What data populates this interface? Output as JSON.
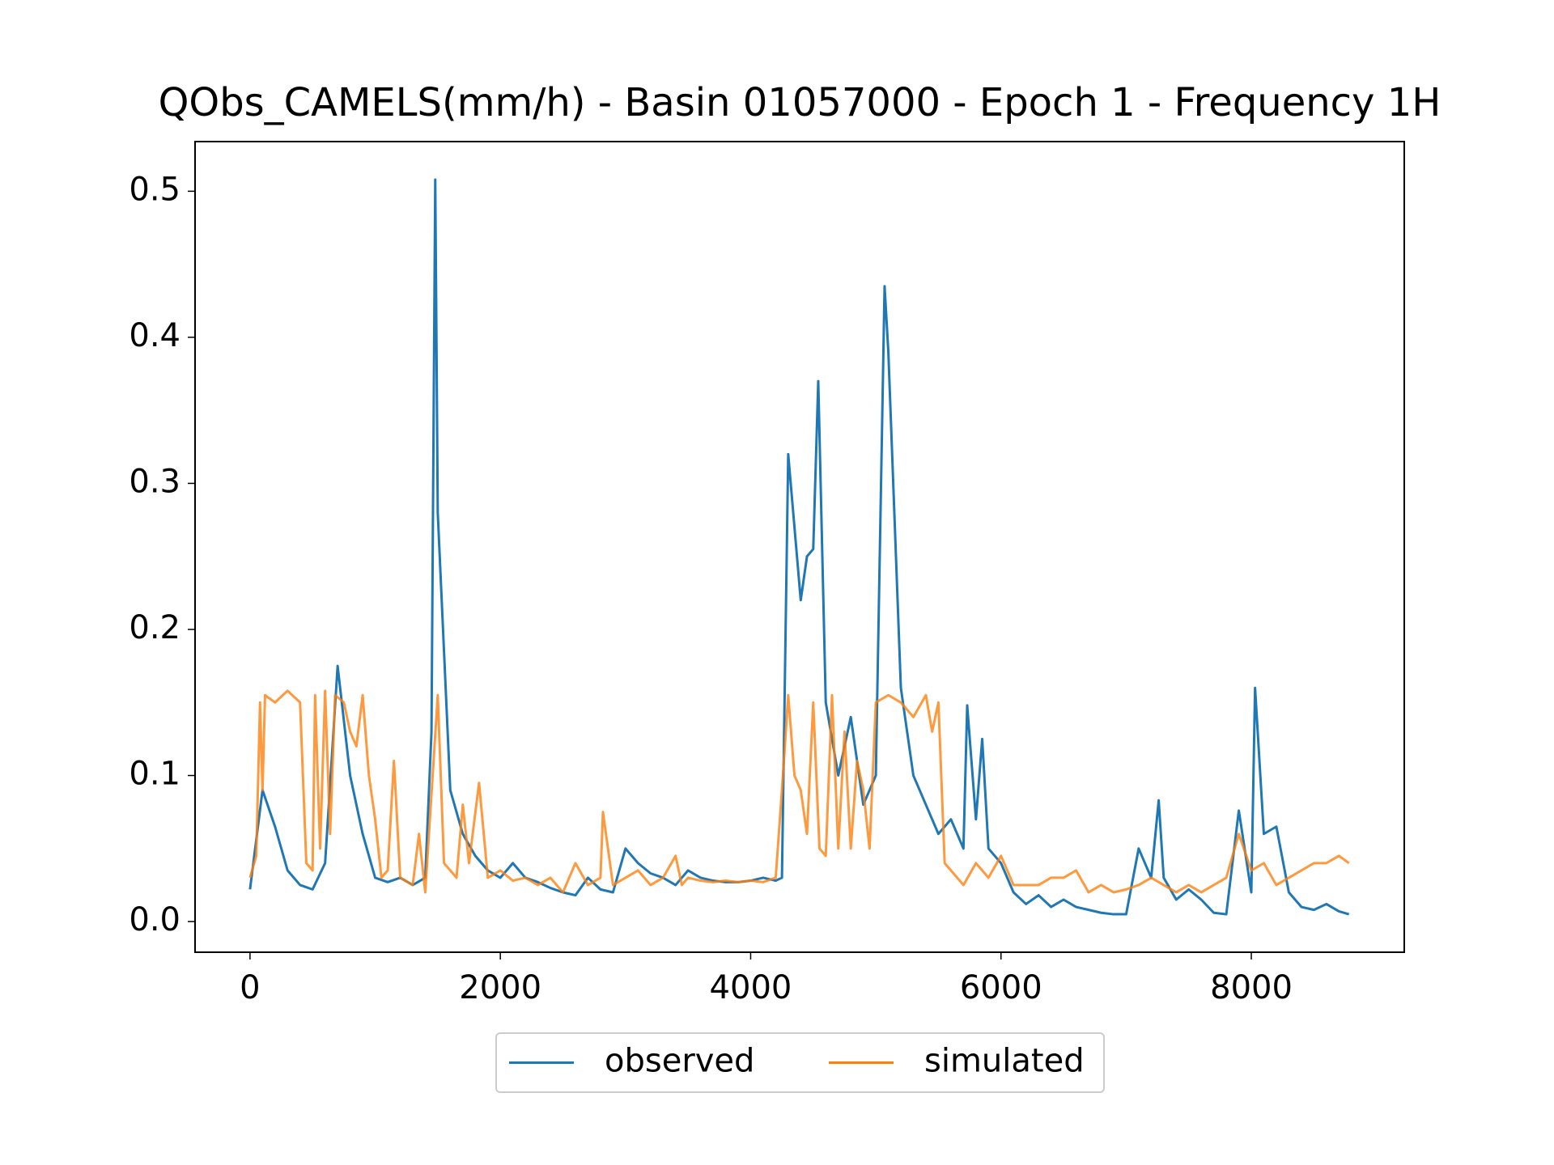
{
  "chart_data": {
    "type": "line",
    "title": "QObs_CAMELS(mm/h) - Basin 01057000 - Epoch 1 - Frequency 1H",
    "xlim": [
      -439,
      9222
    ],
    "xticks": [
      0,
      2000,
      4000,
      6000,
      8000
    ],
    "ylim": [
      -0.021,
      0.534
    ],
    "yticks": [
      0.0,
      0.1,
      0.2,
      0.3,
      0.4,
      0.5
    ],
    "legend": "below",
    "series": [
      {
        "name": "observed",
        "color": "#1f77b4",
        "x": [
          0,
          100,
          200,
          300,
          400,
          500,
          600,
          700,
          800,
          900,
          1000,
          1100,
          1200,
          1300,
          1400,
          1450,
          1480,
          1500,
          1600,
          1700,
          1800,
          1900,
          2000,
          2100,
          2200,
          2300,
          2400,
          2500,
          2600,
          2700,
          2800,
          2900,
          3000,
          3100,
          3200,
          3300,
          3400,
          3500,
          3600,
          3700,
          3800,
          3900,
          4000,
          4100,
          4200,
          4250,
          4300,
          4400,
          4450,
          4500,
          4540,
          4600,
          4700,
          4800,
          4900,
          5000,
          5070,
          5100,
          5200,
          5300,
          5400,
          5500,
          5600,
          5700,
          5730,
          5800,
          5850,
          5900,
          6000,
          6100,
          6200,
          6300,
          6400,
          6500,
          6600,
          6700,
          6800,
          6900,
          7000,
          7100,
          7200,
          7260,
          7300,
          7400,
          7500,
          7600,
          7700,
          7800,
          7900,
          8000,
          8030,
          8100,
          8200,
          8300,
          8400,
          8500,
          8600,
          8700,
          8780
        ],
        "values": [
          0.022,
          0.09,
          0.065,
          0.035,
          0.025,
          0.022,
          0.04,
          0.175,
          0.1,
          0.06,
          0.03,
          0.027,
          0.03,
          0.025,
          0.03,
          0.13,
          0.508,
          0.28,
          0.09,
          0.06,
          0.045,
          0.035,
          0.03,
          0.04,
          0.03,
          0.027,
          0.023,
          0.02,
          0.018,
          0.03,
          0.022,
          0.02,
          0.05,
          0.04,
          0.033,
          0.03,
          0.025,
          0.035,
          0.03,
          0.028,
          0.027,
          0.027,
          0.028,
          0.03,
          0.028,
          0.03,
          0.32,
          0.22,
          0.25,
          0.255,
          0.37,
          0.15,
          0.1,
          0.14,
          0.08,
          0.1,
          0.435,
          0.39,
          0.16,
          0.1,
          0.08,
          0.06,
          0.07,
          0.05,
          0.148,
          0.07,
          0.125,
          0.05,
          0.04,
          0.02,
          0.012,
          0.018,
          0.01,
          0.015,
          0.01,
          0.008,
          0.006,
          0.005,
          0.005,
          0.05,
          0.03,
          0.083,
          0.03,
          0.015,
          0.022,
          0.015,
          0.006,
          0.005,
          0.076,
          0.02,
          0.16,
          0.06,
          0.065,
          0.02,
          0.01,
          0.008,
          0.012,
          0.007,
          0.005
        ]
      },
      {
        "name": "simulated",
        "color": "#ff7f0e",
        "x": [
          0,
          50,
          80,
          100,
          120,
          200,
          300,
          400,
          450,
          500,
          520,
          560,
          600,
          640,
          680,
          750,
          800,
          850,
          900,
          950,
          1000,
          1050,
          1100,
          1150,
          1200,
          1300,
          1350,
          1400,
          1500,
          1550,
          1650,
          1700,
          1750,
          1830,
          1900,
          2000,
          2100,
          2200,
          2300,
          2400,
          2500,
          2600,
          2700,
          2800,
          2820,
          2900,
          3000,
          3100,
          3200,
          3300,
          3400,
          3450,
          3500,
          3600,
          3700,
          3800,
          3900,
          4000,
          4100,
          4200,
          4250,
          4300,
          4350,
          4400,
          4450,
          4500,
          4550,
          4600,
          4650,
          4700,
          4750,
          4800,
          4850,
          4900,
          4950,
          5000,
          5100,
          5200,
          5300,
          5400,
          5450,
          5500,
          5550,
          5600,
          5700,
          5800,
          5900,
          6000,
          6100,
          6200,
          6300,
          6400,
          6500,
          6600,
          6700,
          6800,
          6900,
          7000,
          7100,
          7200,
          7300,
          7400,
          7500,
          7600,
          7700,
          7800,
          7900,
          8000,
          8100,
          8200,
          8300,
          8400,
          8500,
          8600,
          8700,
          8780
        ],
        "values": [
          0.03,
          0.045,
          0.15,
          0.09,
          0.155,
          0.15,
          0.158,
          0.15,
          0.04,
          0.035,
          0.155,
          0.05,
          0.158,
          0.06,
          0.155,
          0.15,
          0.13,
          0.12,
          0.155,
          0.1,
          0.07,
          0.03,
          0.035,
          0.11,
          0.03,
          0.025,
          0.06,
          0.02,
          0.155,
          0.04,
          0.03,
          0.08,
          0.04,
          0.095,
          0.03,
          0.035,
          0.028,
          0.03,
          0.025,
          0.03,
          0.02,
          0.04,
          0.025,
          0.03,
          0.075,
          0.025,
          0.03,
          0.035,
          0.025,
          0.03,
          0.045,
          0.025,
          0.03,
          0.028,
          0.027,
          0.028,
          0.027,
          0.028,
          0.027,
          0.03,
          0.09,
          0.155,
          0.1,
          0.09,
          0.06,
          0.15,
          0.05,
          0.045,
          0.155,
          0.05,
          0.13,
          0.05,
          0.11,
          0.09,
          0.05,
          0.15,
          0.155,
          0.15,
          0.14,
          0.155,
          0.13,
          0.15,
          0.04,
          0.035,
          0.025,
          0.04,
          0.03,
          0.045,
          0.025,
          0.025,
          0.025,
          0.03,
          0.03,
          0.035,
          0.02,
          0.025,
          0.02,
          0.022,
          0.025,
          0.03,
          0.025,
          0.02,
          0.025,
          0.02,
          0.025,
          0.03,
          0.06,
          0.035,
          0.04,
          0.025,
          0.03,
          0.035,
          0.04,
          0.04,
          0.045,
          0.04
        ]
      }
    ]
  }
}
